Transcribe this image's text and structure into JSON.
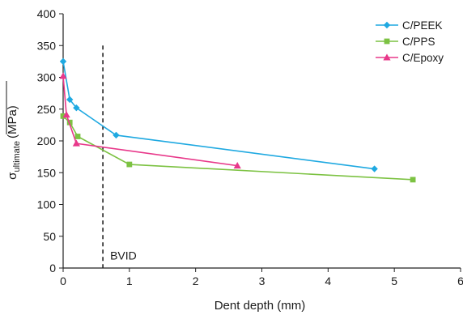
{
  "chart_data": {
    "type": "line",
    "title": "",
    "xlabel": "Dent depth (mm)",
    "ylabel": {
      "symbol": "σ",
      "subscript": "ultimate",
      "unit": "(MPa)"
    },
    "xlim": [
      0,
      6
    ],
    "ylim": [
      0,
      400
    ],
    "x_ticks": [
      "0",
      "1",
      "2",
      "3",
      "4",
      "5",
      "6"
    ],
    "y_ticks": [
      "0",
      "50",
      "100",
      "150",
      "200",
      "250",
      "300",
      "350",
      "400"
    ],
    "grid": false,
    "legend_position": "top-right",
    "series": [
      {
        "name": "C/PEEK",
        "color": "#1fa9e1",
        "marker": "diamond",
        "x": [
          0.0,
          0.1,
          0.2,
          0.8,
          4.7
        ],
        "y": [
          325,
          265,
          252,
          209,
          156
        ]
      },
      {
        "name": "C/PPS",
        "color": "#7cc242",
        "marker": "square",
        "x": [
          0.0,
          0.1,
          0.22,
          1.0,
          5.28
        ],
        "y": [
          239,
          229,
          207,
          163,
          139
        ]
      },
      {
        "name": "C/Epoxy",
        "color": "#e8388a",
        "marker": "triangle",
        "x": [
          0.0,
          0.05,
          0.2,
          2.63
        ],
        "y": [
          302,
          241,
          196,
          161
        ]
      }
    ],
    "annotations": [
      {
        "label": "BVID",
        "x": 0.6,
        "style": "dashed vertical line"
      }
    ]
  }
}
